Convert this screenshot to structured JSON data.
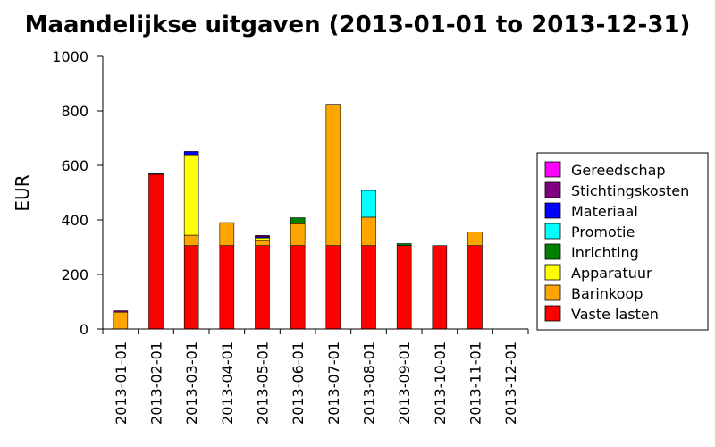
{
  "chart_data": {
    "type": "bar",
    "stacked": true,
    "title": "Maandelijkse uitgaven (2013-01-01 to 2013-12-31)",
    "xlabel": "",
    "ylabel": "EUR",
    "ylim": [
      0,
      1000
    ],
    "yticks": [
      0,
      200,
      400,
      600,
      800,
      1000
    ],
    "grid": false,
    "legend_position": "right",
    "categories": [
      "2013-01-01",
      "2013-02-01",
      "2013-03-01",
      "2013-04-01",
      "2013-05-01",
      "2013-06-01",
      "2013-07-01",
      "2013-08-01",
      "2013-09-01",
      "2013-10-01",
      "2013-11-01",
      "2013-12-01"
    ],
    "series": [
      {
        "name": "Vaste lasten",
        "color": "#ff0000",
        "values": [
          0,
          567,
          306,
          306,
          306,
          306,
          306,
          306,
          306,
          306,
          306,
          0
        ]
      },
      {
        "name": "Barinkoop",
        "color": "#ffa500",
        "values": [
          62,
          0,
          38,
          84,
          18,
          80,
          518,
          104,
          0,
          0,
          50,
          0
        ]
      },
      {
        "name": "Apparatuur",
        "color": "#ffff00",
        "values": [
          0,
          0,
          295,
          0,
          10,
          0,
          0,
          0,
          0,
          0,
          0,
          0
        ]
      },
      {
        "name": "Inrichting",
        "color": "#008000",
        "values": [
          0,
          0,
          0,
          0,
          0,
          22,
          0,
          0,
          7,
          0,
          0,
          0
        ]
      },
      {
        "name": "Promotie",
        "color": "#00ffff",
        "values": [
          0,
          0,
          0,
          0,
          0,
          0,
          0,
          98,
          0,
          0,
          0,
          0
        ]
      },
      {
        "name": "Materiaal",
        "color": "#0000ff",
        "values": [
          0,
          2,
          12,
          0,
          4,
          0,
          0,
          0,
          0,
          0,
          0,
          0
        ]
      },
      {
        "name": "Stichtingskosten",
        "color": "#800080",
        "values": [
          5,
          0,
          0,
          0,
          5,
          0,
          0,
          0,
          0,
          0,
          0,
          0
        ]
      },
      {
        "name": "Gereedschap",
        "color": "#ff00ff",
        "values": [
          0,
          0,
          0,
          0,
          0,
          0,
          0,
          0,
          0,
          0,
          0,
          0
        ]
      }
    ]
  }
}
